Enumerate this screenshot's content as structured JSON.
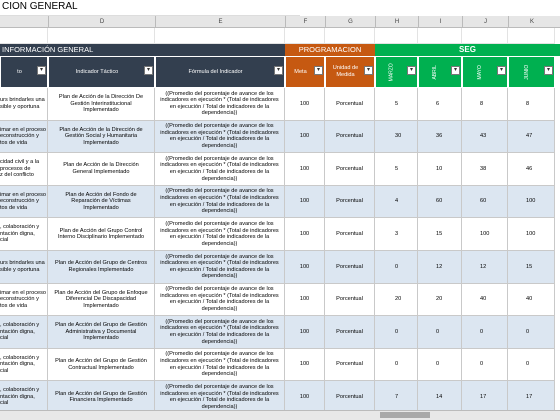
{
  "sheet": {
    "title": "CION GENERAL",
    "column_letters": [
      "D",
      "E",
      "F",
      "G",
      "H",
      "I",
      "J",
      "K"
    ],
    "sections": [
      "INFORMACIÓN GENERAL",
      "PROGRAMACION",
      "SEG"
    ],
    "headers": [
      "to",
      "Indicador Táctico",
      "Fórmula del Indicador",
      "Meta",
      "Unidad de Medida",
      "MARZO",
      "ABRIL",
      "MAYO",
      "JUNIO"
    ],
    "rows": [
      {
        "strategy": [
          "urs brindarles una",
          "sible y oportuna"
        ],
        "indicator": "Plan de Acción de la Dirección De Gestión Interinstitucional Implementado",
        "formula": "((Promedio del porcentaje de avance de los indicadores en ejecución * (Total de indicadores en ejecución / Total de indicadores de la dependencia))",
        "meta": 100,
        "unit": "Porcentual",
        "months": [
          5,
          6,
          8,
          8
        ]
      },
      {
        "strategy": [
          "imar en el proceso",
          "econstrucción y",
          "tos de vida"
        ],
        "indicator": "Plan de Acción de la Dirección de Gestión Social y Humanitaria Implementado",
        "formula": "((Promedio del porcentaje de avance de los indicadores en ejecución * (Total de indicadores en ejecución / Total de indicadores de la dependencia))",
        "meta": 100,
        "unit": "Porcentual",
        "months": [
          30,
          36,
          43,
          47
        ]
      },
      {
        "strategy": [
          "cidad civil y a la",
          "procesos de",
          "z del conflicto"
        ],
        "indicator": "Plan de Acción de la Dirección General Implementado",
        "formula": "((Promedio del porcentaje de avance de los indicadores en ejecución * (Total de indicadores en ejecución / Total de indicadores de la dependencia))",
        "meta": 100,
        "unit": "Porcentual",
        "months": [
          5,
          10,
          38,
          46
        ]
      },
      {
        "strategy": [
          "imar en el proceso",
          "econstrucción y",
          "tos de vida"
        ],
        "indicator": "Plan de Acción del Fondo de Reparación de Víctimas Implementado",
        "formula": "((Promedio del porcentaje de avance de los indicadores en ejecución * (Total de indicadores en ejecución / Total de indicadores de la dependencia))",
        "meta": 100,
        "unit": "Porcentual",
        "months": [
          4,
          60,
          60,
          100
        ]
      },
      {
        "strategy": [
          ", colaboración y",
          "ntación digna,",
          "cial"
        ],
        "indicator": "Plan de Acción del Grupo Control Interno Disciplinario Implementado",
        "formula": "((Promedio del porcentaje de avance de los indicadores en ejecución * (Total de indicadores en ejecución / Total de indicadores de la dependencia))",
        "meta": 100,
        "unit": "Porcentual",
        "months": [
          3,
          15,
          100,
          100
        ]
      },
      {
        "strategy": [
          "urs brindarles una",
          "sible y oportuna"
        ],
        "indicator": "Plan de Acción del Grupo de Centros Regionales Implementado",
        "formula": "((Promedio del porcentaje de avance de los indicadores en ejecución * (Total de indicadores en ejecución / Total de indicadores de la dependencia))",
        "meta": 100,
        "unit": "Porcentual",
        "months": [
          0,
          12,
          12,
          15
        ]
      },
      {
        "strategy": [
          "imar en el proceso",
          "econstrucción y",
          "tos de vida"
        ],
        "indicator": "Plan de Acción del Grupo de Enfoque Diferencial De Discapacidad Implementado",
        "formula": "((Promedio del porcentaje de avance de los indicadores en ejecución * (Total de indicadores en ejecución / Total de indicadores de la dependencia))",
        "meta": 100,
        "unit": "Porcentual",
        "months": [
          20,
          20,
          40,
          40
        ]
      },
      {
        "strategy": [
          ", colaboración y",
          "ntación digna,",
          "cial"
        ],
        "indicator": "Plan de Acción del Grupo de Gestión Administrativa y Documental Implementado",
        "formula": "((Promedio del porcentaje de avance de los indicadores en ejecución * (Total de indicadores en ejecución / Total de indicadores de la dependencia))",
        "meta": 100,
        "unit": "Porcentual",
        "months": [
          0,
          0,
          0,
          0
        ]
      },
      {
        "strategy": [
          ", colaboración y",
          "ntación digna,",
          "cial"
        ],
        "indicator": "Plan de Acción del Grupo de Gestión Contractual Implementado",
        "formula": "((Promedio del porcentaje de avance de los indicadores en ejecución * (Total de indicadores en ejecución / Total de indicadores de la dependencia))",
        "meta": 100,
        "unit": "Porcentual",
        "months": [
          0,
          0,
          0,
          0
        ]
      },
      {
        "strategy": [
          ", colaboración y",
          "ntación digna,",
          "cial"
        ],
        "indicator": "Plan de Acción del Grupo de Gestión Financiera Implementado",
        "formula": "((Promedio del porcentaje de avance de los indicadores en ejecución * (Total de indicadores en ejecución / Total de indicadores de la dependencia))",
        "meta": 100,
        "unit": "Porcentual",
        "months": [
          7,
          14,
          17,
          17
        ]
      }
    ]
  }
}
